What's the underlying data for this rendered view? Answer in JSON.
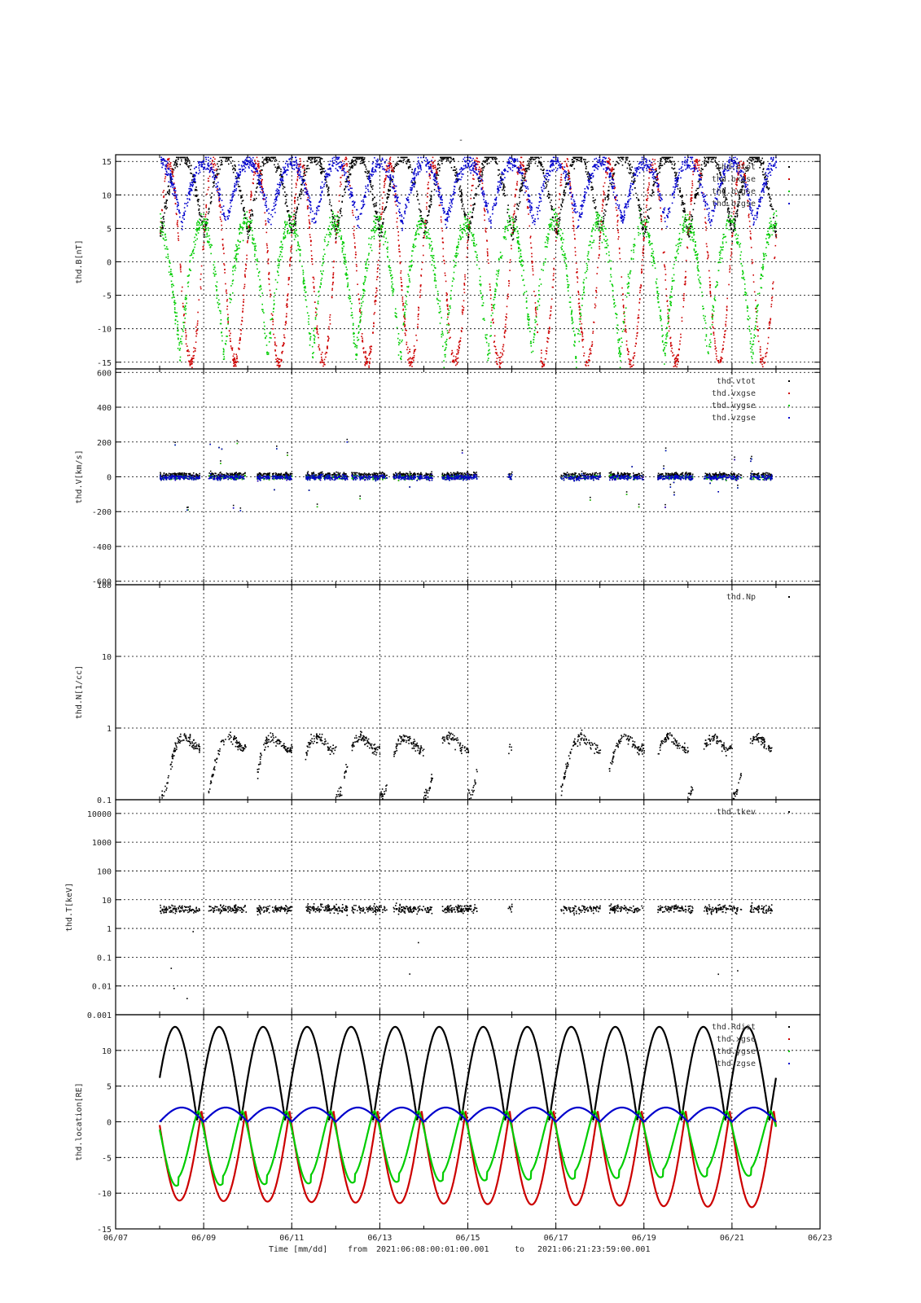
{
  "page": {
    "top_title": "-",
    "footer": {
      "xlabel": "Time [mm/dd]",
      "from_label": "from",
      "from_time": "2021:06:08:00:01:00.001",
      "to_label": "to",
      "to_time": "2021:06:21:23:59:00.001"
    }
  },
  "colors": {
    "black": "#000000",
    "red": "#cc0000",
    "green": "#00cc00",
    "blue": "#0000cc"
  },
  "chart_data": [
    {
      "type": "scatter",
      "ylabel": "thd.B[nT]",
      "xlim": [
        "06/07",
        "06/23"
      ],
      "x_tick_labels": [
        "06/07",
        "06/09",
        "06/11",
        "06/13",
        "06/15",
        "06/17",
        "06/19",
        "06/21",
        "06/23"
      ],
      "ylim": [
        -16,
        16
      ],
      "y_scale": "linear",
      "y_ticks": [
        -15,
        -10,
        -5,
        0,
        5,
        10,
        15
      ],
      "y_tick_labels": [
        "-15",
        "-10",
        "-5",
        "0",
        "5",
        "10",
        "15"
      ],
      "grid": true,
      "legend_position": "top-right",
      "series": [
        {
          "name": "thd.btot",
          "color": "#000000"
        },
        {
          "name": "thd.bxgse",
          "color": "#cc0000"
        },
        {
          "name": "thd.bygse",
          "color": "#00cc00"
        },
        {
          "name": "thd.bzgse",
          "color": "#0000cc"
        }
      ]
    },
    {
      "type": "scatter",
      "ylabel": "thd.V[km/s]",
      "xlim": [
        "06/07",
        "06/23"
      ],
      "ylim": [
        -620,
        620
      ],
      "y_scale": "linear",
      "y_ticks": [
        -600,
        -400,
        -200,
        0,
        200,
        400,
        600
      ],
      "y_tick_labels": [
        "-600",
        "-400",
        "-200",
        "0",
        "200",
        "400",
        "600"
      ],
      "grid": true,
      "legend_position": "top-right",
      "series": [
        {
          "name": "thd.vtot",
          "color": "#000000"
        },
        {
          "name": "thd.vxgse",
          "color": "#cc0000"
        },
        {
          "name": "thd.vygse",
          "color": "#00cc00"
        },
        {
          "name": "thd.vzgse",
          "color": "#0000cc"
        }
      ]
    },
    {
      "type": "scatter",
      "ylabel": "thd.N[1/cc]",
      "xlim": [
        "06/07",
        "06/23"
      ],
      "ylim": [
        0.1,
        100
      ],
      "y_scale": "log",
      "y_ticks": [
        0.1,
        1,
        10,
        100
      ],
      "y_tick_labels": [
        "0.1",
        "1",
        "10",
        "100"
      ],
      "grid": true,
      "legend_position": "top-right",
      "series": [
        {
          "name": "thd.Np",
          "color": "#000000"
        }
      ]
    },
    {
      "type": "scatter",
      "ylabel": "thd.T[keV]",
      "xlim": [
        "06/07",
        "06/23"
      ],
      "ylim": [
        0.001,
        30000
      ],
      "y_scale": "log",
      "y_ticks": [
        0.001,
        0.01,
        0.1,
        1,
        10,
        100,
        1000,
        10000
      ],
      "y_tick_labels": [
        "0.001",
        "0.01",
        "0.1",
        "1",
        "10",
        "100",
        "1000",
        "10000"
      ],
      "grid": true,
      "legend_position": "top-right",
      "series": [
        {
          "name": "thd.tkev",
          "color": "#000000"
        }
      ]
    },
    {
      "type": "line",
      "ylabel": "thd.location[RE]",
      "xlim": [
        "06/07",
        "06/23"
      ],
      "ylim": [
        -15,
        15
      ],
      "y_scale": "linear",
      "y_ticks": [
        -15,
        -10,
        -5,
        0,
        5,
        10
      ],
      "y_tick_labels": [
        "-15",
        "-10",
        "-5",
        "0",
        "5",
        "10"
      ],
      "grid": true,
      "legend_position": "top-right",
      "orbit_period_days": 1.0,
      "series": [
        {
          "name": "thd.Rdist",
          "color": "#000000",
          "apogee": 13.3,
          "perigee": 0.2
        },
        {
          "name": "thd.xgse",
          "color": "#cc0000",
          "min": [
            -11.0,
            -12.0
          ],
          "max": 1.5
        },
        {
          "name": "thd.ygse",
          "color": "#00cc00",
          "min": [
            -9.0,
            -7.5
          ],
          "max": 1.5
        },
        {
          "name": "thd.zgse",
          "color": "#0000cc",
          "max": 2.0,
          "min": 0.0
        }
      ]
    }
  ]
}
